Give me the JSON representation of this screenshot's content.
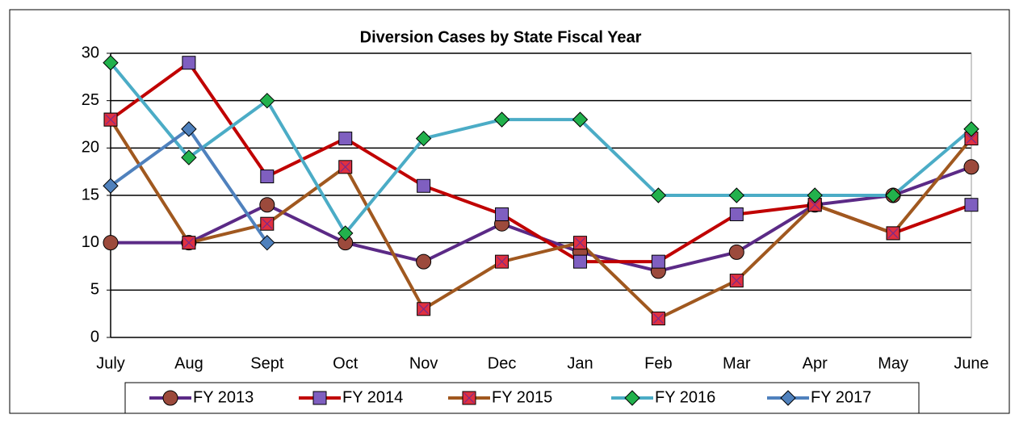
{
  "chart_data": {
    "type": "line",
    "title": "Diversion Cases by State Fiscal Year",
    "categories": [
      "July",
      "Aug",
      "Sept",
      "Oct",
      "Nov",
      "Dec",
      "Jan",
      "Feb",
      "Mar",
      "Apr",
      "May",
      "June"
    ],
    "ylim": [
      0,
      30
    ],
    "yticks": [
      0,
      5,
      10,
      15,
      20,
      25,
      30
    ],
    "grid": true,
    "series": [
      {
        "name": "FY 2013",
        "color": "#5b2a86",
        "marker": "circle",
        "marker_color": "#9c4a3c",
        "values": [
          10,
          10,
          14,
          10,
          8,
          12,
          9,
          7,
          9,
          14,
          15,
          18
        ]
      },
      {
        "name": "FY 2014",
        "color": "#c00000",
        "marker": "square",
        "marker_color": "#7f5fc0",
        "values": [
          23,
          29,
          17,
          21,
          16,
          13,
          8,
          8,
          13,
          14,
          11,
          14
        ]
      },
      {
        "name": "FY 2015",
        "color": "#a0581f",
        "marker": "xsquare",
        "marker_color": "#e03040",
        "values": [
          23,
          10,
          12,
          18,
          3,
          8,
          10,
          2,
          6,
          14,
          11,
          21
        ]
      },
      {
        "name": "FY 2016",
        "color": "#4bacc6",
        "marker": "diamond",
        "marker_color": "#22b14c",
        "values": [
          29,
          19,
          25,
          11,
          21,
          23,
          23,
          15,
          15,
          15,
          15,
          22
        ]
      },
      {
        "name": "FY 2017",
        "color": "#4f81bd",
        "marker": "diamond",
        "marker_color": "#4f81bd",
        "values": [
          16,
          22,
          10,
          null,
          null,
          null,
          null,
          null,
          null,
          null,
          null,
          null
        ]
      }
    ]
  }
}
